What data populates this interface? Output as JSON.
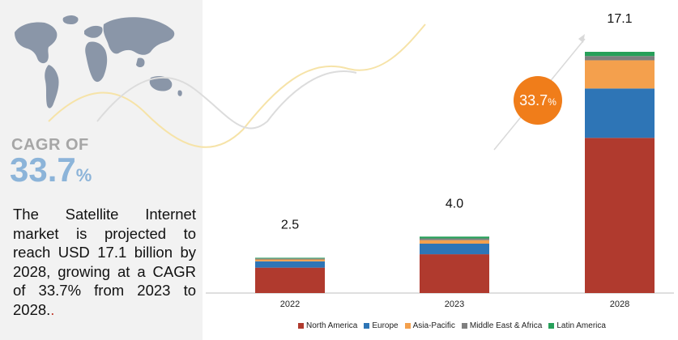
{
  "cagr": {
    "label": "CAGR OF",
    "value": "33.7",
    "unit": "%"
  },
  "summary_text": "The Satellite Internet market is projected to reach  USD 17.1 billion by 2028, growing at a CAGR of 33.7% from 2023 to 2028.",
  "summary_suffix": ".",
  "badge": {
    "value": "33.7",
    "unit": "%"
  },
  "colors": {
    "north_america": "#b03a2e",
    "europe": "#2e75b6",
    "asia_pacific": "#f4a04d",
    "middle_east_africa": "#7f7f7f",
    "latin_america": "#27a05a",
    "badge": "#f07d1a",
    "accent_text": "#8cb4d9"
  },
  "chart_data": {
    "type": "bar",
    "stacked": true,
    "categories": [
      "2022",
      "2023",
      "2028"
    ],
    "totals": [
      "2.5",
      "4.0",
      "17.1"
    ],
    "series": [
      {
        "name": "North America",
        "values": [
          1.8,
          2.75,
          11.0
        ]
      },
      {
        "name": "Europe",
        "values": [
          0.45,
          0.75,
          3.5
        ]
      },
      {
        "name": "Asia-Pacific",
        "values": [
          0.13,
          0.25,
          2.0
        ]
      },
      {
        "name": "Middle East & Africa",
        "values": [
          0.07,
          0.12,
          0.3
        ]
      },
      {
        "name": "Latin America",
        "values": [
          0.05,
          0.13,
          0.3
        ]
      }
    ],
    "ylim": [
      0,
      17.1
    ],
    "legend_position": "bottom"
  }
}
